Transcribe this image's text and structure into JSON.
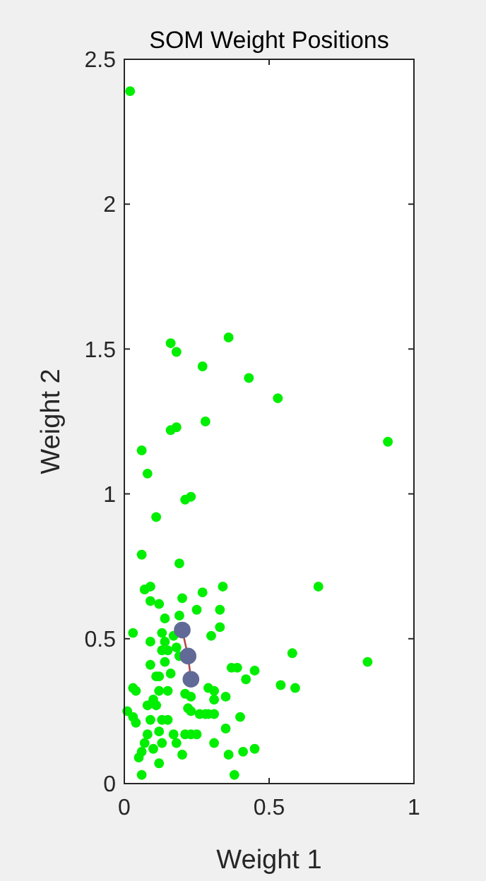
{
  "chart_data": {
    "type": "scatter",
    "title": "SOM Weight Positions",
    "xlabel": "Weight 1",
    "ylabel": "Weight 2",
    "xlim": [
      0,
      1
    ],
    "xticks": [
      0,
      0.5,
      1
    ],
    "ylim": [
      0,
      2.5
    ],
    "yticks": [
      0,
      0.5,
      1,
      1.5,
      2,
      2.5
    ],
    "grid": false,
    "series": [
      {
        "color": "#00ee00",
        "marker": "circle",
        "x": [
          0.02,
          0.16,
          0.18,
          0.36,
          0.27,
          0.43,
          0.53,
          0.28,
          0.16,
          0.18,
          0.91,
          0.06,
          0.08,
          0.21,
          0.23,
          0.11,
          0.06,
          0.19,
          0.07,
          0.09,
          0.34,
          0.2,
          0.27,
          0.09,
          0.12,
          0.25,
          0.33,
          0.14,
          0.19,
          0.33,
          0.03,
          0.13,
          0.17,
          0.3,
          0.09,
          0.14,
          0.18,
          0.13,
          0.15,
          0.14,
          0.19,
          0.58,
          0.09,
          0.16,
          0.11,
          0.37,
          0.39,
          0.45,
          0.42,
          0.54,
          0.59,
          0.03,
          0.04,
          0.12,
          0.15,
          0.12,
          0.21,
          0.23,
          0.29,
          0.31,
          0.31,
          0.35,
          0.1,
          0.11,
          0.08,
          0.22,
          0.23,
          0.26,
          0.28,
          0.29,
          0.31,
          0.01,
          0.03,
          0.04,
          0.09,
          0.13,
          0.15,
          0.4,
          0.35,
          0.08,
          0.12,
          0.17,
          0.21,
          0.23,
          0.25,
          0.13,
          0.07,
          0.18,
          0.31,
          0.1,
          0.06,
          0.2,
          0.36,
          0.41,
          0.45,
          0.05,
          0.12,
          0.06,
          0.38,
          0.67,
          0.84
        ],
        "values": [
          2.39,
          1.52,
          1.49,
          1.54,
          1.44,
          1.4,
          1.33,
          1.25,
          1.22,
          1.23,
          1.18,
          1.15,
          1.07,
          0.98,
          0.99,
          0.92,
          0.79,
          0.76,
          0.67,
          0.68,
          0.68,
          0.64,
          0.66,
          0.63,
          0.62,
          0.6,
          0.6,
          0.57,
          0.58,
          0.54,
          0.52,
          0.52,
          0.51,
          0.51,
          0.49,
          0.49,
          0.47,
          0.46,
          0.46,
          0.42,
          0.44,
          0.45,
          0.41,
          0.38,
          0.37,
          0.4,
          0.4,
          0.39,
          0.36,
          0.34,
          0.33,
          0.33,
          0.32,
          0.37,
          0.32,
          0.32,
          0.31,
          0.3,
          0.33,
          0.32,
          0.29,
          0.3,
          0.29,
          0.27,
          0.27,
          0.26,
          0.25,
          0.24,
          0.24,
          0.24,
          0.24,
          0.25,
          0.23,
          0.21,
          0.22,
          0.22,
          0.22,
          0.23,
          0.19,
          0.17,
          0.18,
          0.17,
          0.17,
          0.17,
          0.17,
          0.14,
          0.14,
          0.14,
          0.14,
          0.12,
          0.11,
          0.1,
          0.1,
          0.11,
          0.12,
          0.09,
          0.07,
          0.03,
          0.03,
          0.68,
          0.42
        ]
      },
      {
        "type": "line",
        "color": "#b04a4a",
        "line_style": "solid",
        "x": [
          0.2,
          0.22,
          0.23
        ],
        "values": [
          0.53,
          0.44,
          0.36
        ]
      },
      {
        "type": "scatter",
        "color": "#616a96",
        "marker": "circle",
        "x": [
          0.2,
          0.22,
          0.23
        ],
        "values": [
          0.53,
          0.44,
          0.36
        ]
      }
    ]
  }
}
